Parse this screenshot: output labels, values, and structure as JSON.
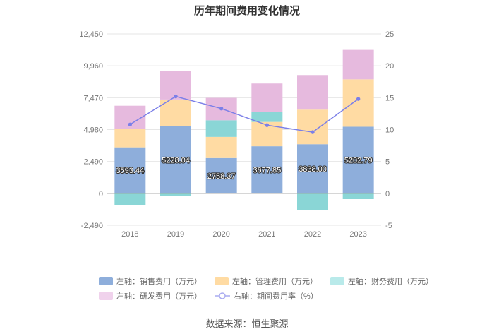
{
  "chart_data": {
    "type": "bar",
    "title": "历年期间费用变化情况",
    "categories": [
      "2018",
      "2019",
      "2020",
      "2021",
      "2022",
      "2023"
    ],
    "left_axis": {
      "ylim": [
        -2490,
        12450
      ],
      "ticks": [
        "12,450",
        "9,960",
        "7,470",
        "4,980",
        "2,490",
        "0",
        "-2,490"
      ],
      "tick_values": [
        12450,
        9960,
        7470,
        4980,
        2490,
        0,
        -2490
      ]
    },
    "right_axis": {
      "ylim": [
        -5,
        25
      ],
      "ticks": [
        "25",
        "20",
        "15",
        "10",
        "5",
        "0",
        "-5"
      ],
      "tick_values": [
        25,
        20,
        15,
        10,
        5,
        0,
        -5
      ]
    },
    "series": [
      {
        "name": "左轴：销售费用（万元）",
        "color": "#8eaedb",
        "values": [
          3593.44,
          5228.04,
          2758.37,
          3677.85,
          3838.0,
          5202.79
        ],
        "labels": [
          "3593.44",
          "5228.04",
          "2758.37",
          "3677.85",
          "3838.00",
          "5202.79"
        ]
      },
      {
        "name": "左轴：管理费用（万元）",
        "color": "#ffdba3",
        "values": [
          1450,
          2100,
          1650,
          1900,
          2700,
          3700
        ]
      },
      {
        "name": "左轴：财务费用（万元）",
        "color": "#8ad6d6",
        "values": [
          -900,
          -200,
          1300,
          800,
          -1300,
          -450
        ]
      },
      {
        "name": "左轴：研发费用（万元）",
        "color": "#e6bade",
        "values": [
          1800,
          2200,
          1750,
          2200,
          2700,
          2300
        ]
      }
    ],
    "line_series": {
      "name": "右轴：期间费用率（%）",
      "color": "#7b7fe8",
      "values": [
        10.8,
        15.2,
        13.3,
        10.7,
        9.6,
        14.8
      ]
    }
  },
  "source": "数据来源：恒生聚源"
}
